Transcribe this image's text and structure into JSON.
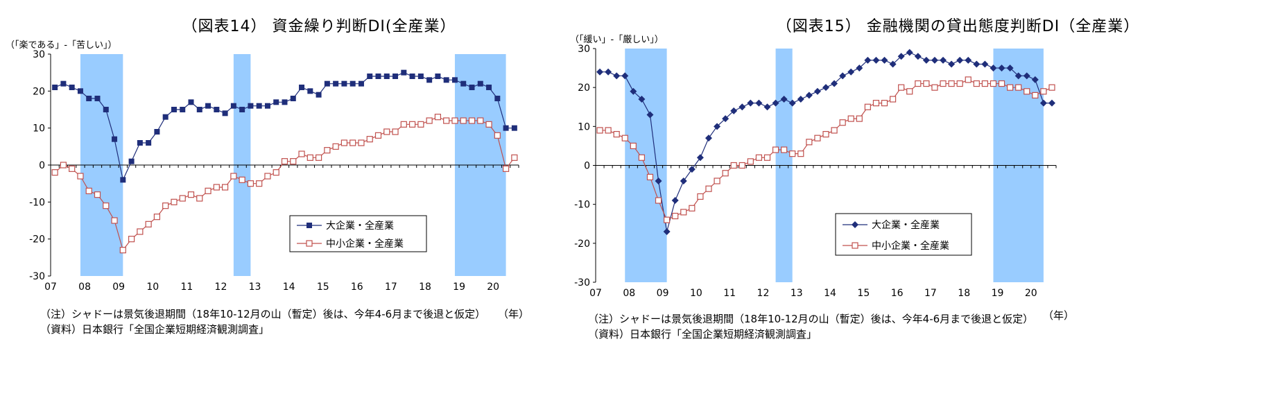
{
  "chart_data": [
    {
      "type": "line",
      "title": "（図表14） 資金繰り判断DI(全産業）",
      "ylabel": "（「楽である」-「苦しい」）",
      "xlabel": "（年）",
      "ylim": [
        -30,
        30
      ],
      "y_ticks": [
        "30",
        "20",
        "10",
        "0",
        "-10",
        "-20",
        "-30"
      ],
      "x_ticks": [
        "07",
        "08",
        "09",
        "10",
        "11",
        "12",
        "13",
        "14",
        "15",
        "16",
        "17",
        "18",
        "19",
        "20"
      ],
      "x_start": "2007 Q1",
      "x_step": "quarter",
      "shading": [
        [
          "2007 Q4",
          "2009 Q1"
        ],
        [
          "2012 Q2",
          "2012 Q4"
        ],
        [
          "2018 Q4",
          "2020 Q2"
        ]
      ],
      "legend_position": "lower-right",
      "series": [
        {
          "name": "大企業・全産業",
          "color": "#1f2e7a",
          "marker": "filled-square",
          "values": [
            21,
            22,
            21,
            20,
            18,
            18,
            15,
            7,
            -4,
            1,
            6,
            6,
            9,
            13,
            15,
            15,
            17,
            15,
            16,
            15,
            14,
            16,
            15,
            16,
            16,
            16,
            17,
            17,
            18,
            21,
            20,
            19,
            22,
            22,
            22,
            22,
            22,
            24,
            24,
            24,
            24,
            25,
            24,
            24,
            23,
            24,
            23,
            23,
            22,
            21,
            22,
            21,
            18,
            10,
            10
          ]
        },
        {
          "name": "中小企業・全産業",
          "color": "#c0504d",
          "marker": "hollow-square",
          "values": [
            -2,
            0,
            -1,
            -3,
            -7,
            -8,
            -11,
            -15,
            -23,
            -20,
            -18,
            -16,
            -14,
            -11,
            -10,
            -9,
            -8,
            -9,
            -7,
            -6,
            -6,
            -3,
            -4,
            -5,
            -5,
            -3,
            -2,
            1,
            1,
            3,
            2,
            2,
            4,
            5,
            6,
            6,
            6,
            7,
            8,
            9,
            9,
            11,
            11,
            11,
            12,
            13,
            12,
            12,
            12,
            12,
            12,
            11,
            8,
            -1,
            2
          ]
        }
      ],
      "notes": [
        "（注）シャドーは景気後退期間（18年10-12月の山（暫定）後は、今年4-6月まで後退と仮定）",
        "（資料）日本銀行「全国企業短期経済観測調査」"
      ]
    },
    {
      "type": "line",
      "title": "（図表15） 金融機関の貸出態度判断DI（全産業）",
      "ylabel": "（「緩い」-「厳しい」）",
      "xlabel": "（年）",
      "ylim": [
        -30,
        30
      ],
      "y_ticks": [
        "30",
        "20",
        "10",
        "0",
        "-10",
        "-20",
        "-30"
      ],
      "x_ticks": [
        "07",
        "08",
        "09",
        "10",
        "11",
        "12",
        "13",
        "14",
        "15",
        "16",
        "17",
        "18",
        "19",
        "20"
      ],
      "x_start": "2007 Q1",
      "x_step": "quarter",
      "shading": [
        [
          "2007 Q4",
          "2009 Q1"
        ],
        [
          "2012 Q2",
          "2012 Q4"
        ],
        [
          "2018 Q4",
          "2020 Q2"
        ]
      ],
      "legend_position": "lower-right",
      "series": [
        {
          "name": "大企業・全産業",
          "color": "#1f2e7a",
          "marker": "filled-diamond",
          "values": [
            24,
            24,
            23,
            23,
            19,
            17,
            13,
            -4,
            -17,
            -9,
            -4,
            -1,
            2,
            7,
            10,
            12,
            14,
            15,
            16,
            16,
            15,
            16,
            17,
            16,
            17,
            18,
            19,
            20,
            21,
            23,
            24,
            25,
            27,
            27,
            27,
            26,
            28,
            29,
            28,
            27,
            27,
            27,
            26,
            27,
            27,
            26,
            26,
            25,
            25,
            25,
            23,
            23,
            22,
            16,
            16
          ]
        },
        {
          "name": "中小企業・全産業",
          "color": "#c0504d",
          "marker": "hollow-square",
          "values": [
            9,
            9,
            8,
            7,
            5,
            2,
            -3,
            -9,
            -14,
            -13,
            -12,
            -11,
            -8,
            -6,
            -4,
            -2,
            0,
            0,
            1,
            2,
            2,
            4,
            4,
            3,
            3,
            6,
            7,
            8,
            9,
            11,
            12,
            12,
            15,
            16,
            16,
            17,
            20,
            19,
            21,
            21,
            20,
            21,
            21,
            21,
            22,
            21,
            21,
            21,
            21,
            20,
            20,
            19,
            18,
            19,
            20
          ]
        }
      ],
      "notes": [
        "（注）シャドーは景気後退期間（18年10-12月の山（暫定）後は、今年4-6月まで後退と仮定）",
        "（資料）日本銀行「全国企業短期経済観測調査」"
      ]
    }
  ]
}
